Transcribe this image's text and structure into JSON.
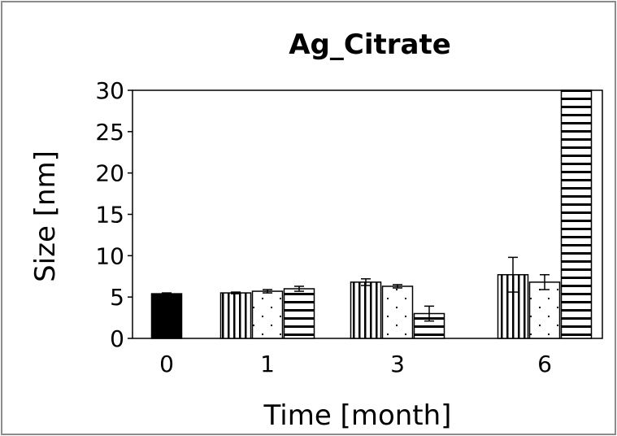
{
  "chart_data": {
    "type": "bar",
    "title": "Ag_Citrate",
    "xlabel": "Time [month]",
    "ylabel": "Size [nm]",
    "ylim": [
      0,
      30
    ],
    "yticks": [
      "0",
      "5",
      "10",
      "15",
      "20",
      "25",
      "30"
    ],
    "categories": [
      "0",
      "1",
      "3",
      "6"
    ],
    "series": [
      {
        "pattern": "solid",
        "values": [
          5.4,
          null,
          null,
          null
        ],
        "errors": [
          0.1,
          null,
          null,
          null
        ]
      },
      {
        "pattern": "vertical-stripes",
        "values": [
          null,
          5.5,
          6.8,
          7.7
        ],
        "errors": [
          null,
          0.1,
          0.4,
          2.1
        ]
      },
      {
        "pattern": "dots",
        "values": [
          null,
          5.7,
          6.3,
          6.8
        ],
        "errors": [
          null,
          0.2,
          0.2,
          0.9
        ]
      },
      {
        "pattern": "horizontal-stripes",
        "values": [
          null,
          6.0,
          3.0,
          30
        ],
        "errors": [
          null,
          0.3,
          0.9,
          null
        ]
      }
    ],
    "grid": false,
    "legend": "none"
  }
}
